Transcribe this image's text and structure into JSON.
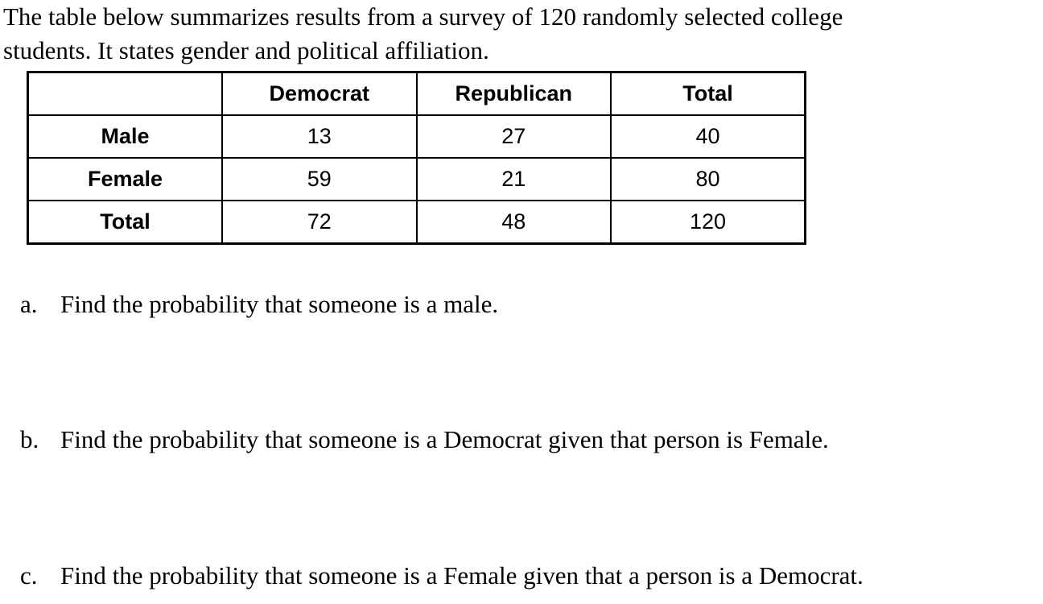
{
  "intro": {
    "line1": "The table below summarizes results from a survey of 120 randomly selected college",
    "line2": "students. It states gender and political affiliation."
  },
  "chart_data": {
    "type": "table",
    "columns": [
      "",
      "Democrat",
      "Republican",
      "Total"
    ],
    "rows": [
      {
        "label": "Male",
        "values": [
          "13",
          "27",
          "40"
        ]
      },
      {
        "label": "Female",
        "values": [
          "59",
          "21",
          "80"
        ]
      },
      {
        "label": "Total",
        "values": [
          "72",
          "48",
          "120"
        ]
      }
    ]
  },
  "questions": [
    {
      "marker": "a.",
      "text": "Find the probability that someone is a male."
    },
    {
      "marker": "b.",
      "text": "Find the probability that someone is a Democrat given that person is Female."
    },
    {
      "marker": "c.",
      "text": "Find the probability that someone is a Female given that a person is a Democrat."
    }
  ],
  "colors": {
    "text": "#000000",
    "background": "#ffffff",
    "table_border": "#000000"
  }
}
